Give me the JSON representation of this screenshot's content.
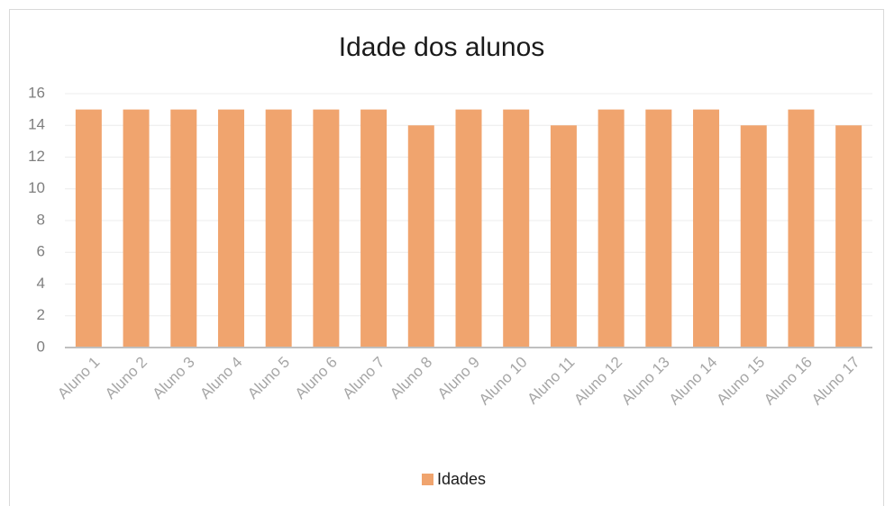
{
  "chart_data": {
    "type": "bar",
    "title": "Idade dos alunos",
    "categories": [
      "Aluno 1",
      "Aluno 2",
      "Aluno 3",
      "Aluno 4",
      "Aluno 5",
      "Aluno 6",
      "Aluno 7",
      "Aluno 8",
      "Aluno 9",
      "Aluno 10",
      "Aluno 11",
      "Aluno 12",
      "Aluno 13",
      "Aluno 14",
      "Aluno 15",
      "Aluno 16",
      "Aluno 17"
    ],
    "series": [
      {
        "name": "Idades",
        "color": "#f0a46e",
        "values": [
          15,
          15,
          15,
          15,
          15,
          15,
          15,
          14,
          15,
          15,
          14,
          15,
          15,
          15,
          14,
          15,
          14
        ]
      }
    ],
    "ylim": [
      0,
      16
    ],
    "yticks": [
      0,
      2,
      4,
      6,
      8,
      10,
      12,
      14,
      16
    ],
    "grid": true,
    "legend": "bottom"
  }
}
